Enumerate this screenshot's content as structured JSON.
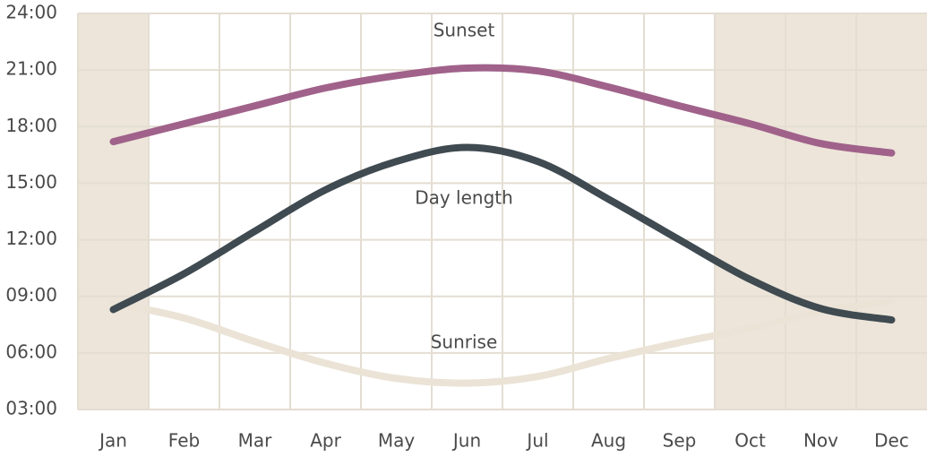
{
  "chart_data": {
    "type": "line",
    "categories": [
      "Jan",
      "Feb",
      "Mar",
      "Apr",
      "May",
      "Jun",
      "Jul",
      "Aug",
      "Sep",
      "Oct",
      "Nov",
      "Dec"
    ],
    "series": [
      {
        "name": "Sunset",
        "color": "#a0628a",
        "values": [
          17.2,
          18.15,
          19.1,
          20.05,
          20.7,
          21.1,
          20.95,
          20.1,
          19.1,
          18.15,
          17.1,
          16.6
        ]
      },
      {
        "name": "Day length",
        "color": "#3f4a51",
        "values": [
          8.3,
          10.2,
          12.45,
          14.65,
          16.15,
          16.9,
          16.15,
          14.15,
          12.0,
          9.9,
          8.35,
          7.75
        ]
      },
      {
        "name": "Sunrise",
        "color": "#ebe3d6",
        "values": [
          8.65,
          7.85,
          6.6,
          5.45,
          4.65,
          4.4,
          4.75,
          5.7,
          6.55,
          7.3,
          8.2,
          8.75
        ]
      }
    ],
    "ylim": [
      3,
      24
    ],
    "yticks": [
      {
        "value": 3,
        "label": "03:00"
      },
      {
        "value": 6,
        "label": "06:00"
      },
      {
        "value": 9,
        "label": "09:00"
      },
      {
        "value": 12,
        "label": "12:00"
      },
      {
        "value": 15,
        "label": "15:00"
      },
      {
        "value": 18,
        "label": "18:00"
      },
      {
        "value": 21,
        "label": "21:00"
      },
      {
        "value": 24,
        "label": "24:00"
      }
    ],
    "shaded": [
      0,
      9,
      10,
      11
    ],
    "shade_color": "#ede5da",
    "grid": true
  }
}
